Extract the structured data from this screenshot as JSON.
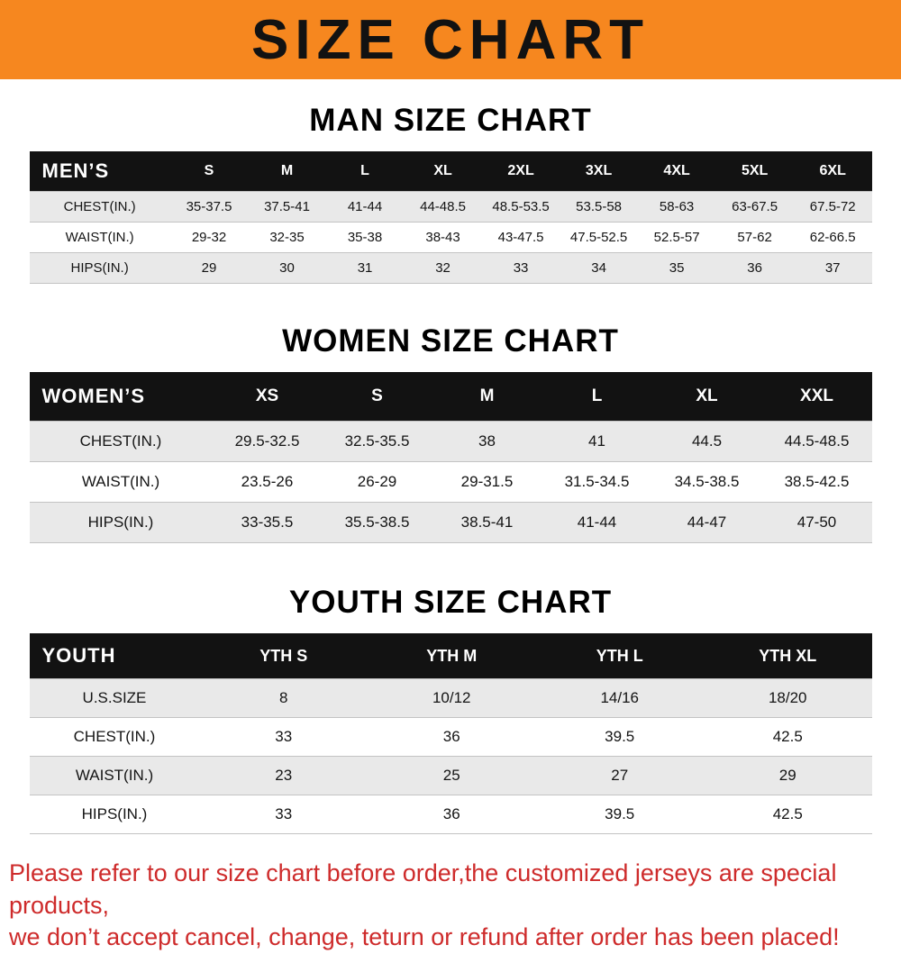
{
  "banner": {
    "title": "SIZE CHART"
  },
  "colors": {
    "banner_bg": "#F6871F",
    "header_bg": "#121212",
    "row_shade": "#E9E9E9",
    "note_red": "#CE2B2B"
  },
  "sections": [
    {
      "id": "men",
      "heading": "MAN SIZE CHART",
      "table": {
        "header": [
          "MEN’S",
          "S",
          "M",
          "L",
          "XL",
          "2XL",
          "3XL",
          "4XL",
          "5XL",
          "6XL"
        ],
        "rows": [
          [
            "CHEST(IN.)",
            "35-37.5",
            "37.5-41",
            "41-44",
            "44-48.5",
            "48.5-53.5",
            "53.5-58",
            "58-63",
            "63-67.5",
            "67.5-72"
          ],
          [
            "WAIST(IN.)",
            "29-32",
            "32-35",
            "35-38",
            "38-43",
            "43-47.5",
            "47.5-52.5",
            "52.5-57",
            "57-62",
            "62-66.5"
          ],
          [
            "HIPS(IN.)",
            "29",
            "30",
            "31",
            "32",
            "33",
            "34",
            "35",
            "36",
            "37"
          ]
        ]
      }
    },
    {
      "id": "women",
      "heading": "WOMEN SIZE CHART",
      "table": {
        "header": [
          "WOMEN’S",
          "XS",
          "S",
          "M",
          "L",
          "XL",
          "XXL"
        ],
        "rows": [
          [
            "CHEST(IN.)",
            "29.5-32.5",
            "32.5-35.5",
            "38",
            "41",
            "44.5",
            "44.5-48.5"
          ],
          [
            "WAIST(IN.)",
            "23.5-26",
            "26-29",
            "29-31.5",
            "31.5-34.5",
            "34.5-38.5",
            "38.5-42.5"
          ],
          [
            "HIPS(IN.)",
            "33-35.5",
            "35.5-38.5",
            "38.5-41",
            "41-44",
            "44-47",
            "47-50"
          ]
        ]
      }
    },
    {
      "id": "youth",
      "heading": "YOUTH SIZE CHART",
      "table": {
        "header": [
          "YOUTH",
          "YTH S",
          "YTH M",
          "YTH L",
          "YTH XL"
        ],
        "rows": [
          [
            "U.S.SIZE",
            "8",
            "10/12",
            "14/16",
            "18/20"
          ],
          [
            "CHEST(IN.)",
            "33",
            "36",
            "39.5",
            "42.5"
          ],
          [
            "WAIST(IN.)",
            "23",
            "25",
            "27",
            "29"
          ],
          [
            "HIPS(IN.)",
            "33",
            "36",
            "39.5",
            "42.5"
          ]
        ]
      }
    }
  ],
  "note": {
    "lines": [
      "Please refer to our size chart before order,the customized jerseys are special products,",
      "we don’t accept cancel, change, teturn or refund after order has been placed!"
    ]
  }
}
